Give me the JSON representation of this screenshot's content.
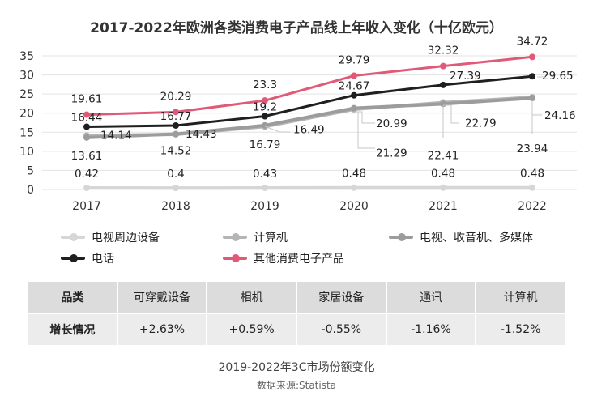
{
  "chart_data": {
    "type": "line",
    "title": "2017-2022年欧洲各类消费电子产品线上年收入变化（十亿欧元）",
    "categories": [
      "2017",
      "2018",
      "2019",
      "2020",
      "2021",
      "2022"
    ],
    "ylim": [
      0,
      35
    ],
    "yticks": [
      0,
      5,
      10,
      15,
      20,
      25,
      30,
      35
    ],
    "grid": true,
    "legend_position": "bottom",
    "series": [
      {
        "name": "电视周边设备",
        "color": "#d6d6d6",
        "values": [
          0.42,
          0.4,
          0.43,
          0.48,
          0.48,
          0.48
        ]
      },
      {
        "name": "计算机",
        "color": "#b5b5b5",
        "values": [
          14.14,
          14.43,
          16.49,
          20.99,
          22.79,
          24.16
        ]
      },
      {
        "name": "电视、收音机、多媒体",
        "color": "#9c9c9c",
        "values": [
          13.61,
          14.52,
          16.79,
          21.29,
          22.41,
          23.94
        ]
      },
      {
        "name": "电话",
        "color": "#1f1f1f",
        "values": [
          16.44,
          16.77,
          19.2,
          24.67,
          27.39,
          29.65
        ]
      },
      {
        "name": "其他消费电子产品",
        "color": "#e05a78",
        "values": [
          19.61,
          20.29,
          23.3,
          29.79,
          32.32,
          34.72
        ]
      }
    ]
  },
  "growth_table": {
    "header_label": "品类",
    "row_label": "增长情况",
    "categories": [
      "可穿戴设备",
      "相机",
      "家居设备",
      "通讯",
      "计算机"
    ],
    "values": [
      "+2.63%",
      "+0.59%",
      "-0.55%",
      "-1.16%",
      "-1.52%"
    ]
  },
  "caption": "2019-2022年3C市场份额变化",
  "source": "数据来源:Statista",
  "colors": {
    "grid": "#e3e3e3",
    "table_header_bg": "#dcdcdc",
    "table_row_bg": "#ececec"
  }
}
